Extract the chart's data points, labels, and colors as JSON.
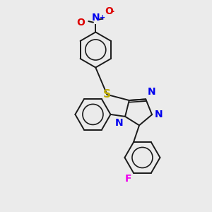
{
  "bg_color": "#ebebeb",
  "bond_color": "#1a1a1a",
  "N_color": "#0000ee",
  "S_color": "#bbaa00",
  "O_color": "#dd0000",
  "F_color": "#ee00ee",
  "lw": 1.4,
  "font_size": 10,
  "figsize": [
    3.0,
    3.0
  ],
  "dpi": 100,
  "xlim": [
    0,
    10
  ],
  "ylim": [
    0,
    10
  ],
  "ring_r": 0.85,
  "tri_r": 0.68
}
